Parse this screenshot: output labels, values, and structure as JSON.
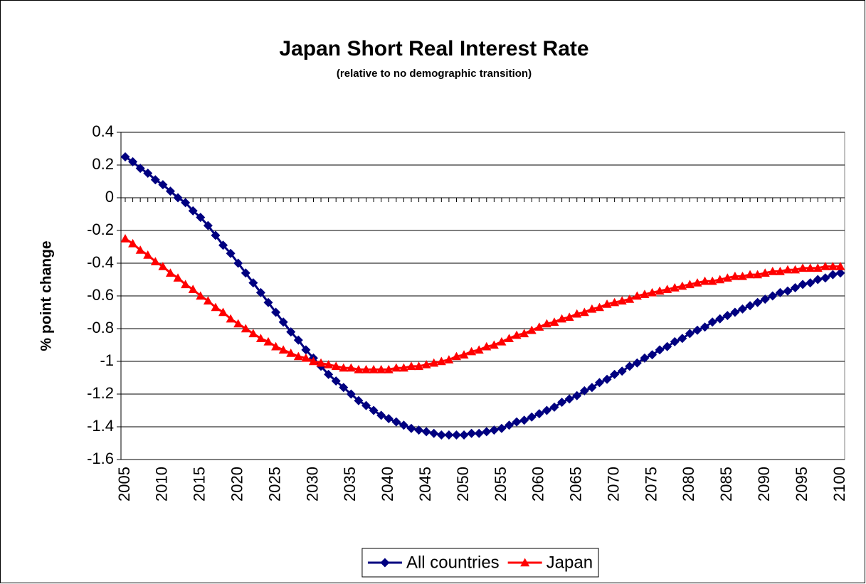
{
  "chart_data": {
    "type": "line",
    "title": "Japan Short Real Interest Rate",
    "subtitle": "(relative to no demographic transition)",
    "y_label": "% point change",
    "x": [
      2005,
      2006,
      2007,
      2008,
      2009,
      2010,
      2011,
      2012,
      2013,
      2014,
      2015,
      2016,
      2017,
      2018,
      2019,
      2020,
      2021,
      2022,
      2023,
      2024,
      2025,
      2026,
      2027,
      2028,
      2029,
      2030,
      2031,
      2032,
      2033,
      2034,
      2035,
      2036,
      2037,
      2038,
      2039,
      2040,
      2041,
      2042,
      2043,
      2044,
      2045,
      2046,
      2047,
      2048,
      2049,
      2050,
      2051,
      2052,
      2053,
      2054,
      2055,
      2056,
      2057,
      2058,
      2059,
      2060,
      2061,
      2062,
      2063,
      2064,
      2065,
      2066,
      2067,
      2068,
      2069,
      2070,
      2071,
      2072,
      2073,
      2074,
      2075,
      2076,
      2077,
      2078,
      2079,
      2080,
      2081,
      2082,
      2083,
      2084,
      2085,
      2086,
      2087,
      2088,
      2089,
      2090,
      2091,
      2092,
      2093,
      2094,
      2095,
      2096,
      2097,
      2098,
      2099,
      2100
    ],
    "series": [
      {
        "name": "All countries",
        "color": "#000080",
        "marker": "diamond",
        "values": [
          0.25,
          0.22,
          0.18,
          0.15,
          0.11,
          0.08,
          0.04,
          0.0,
          -0.03,
          -0.08,
          -0.12,
          -0.17,
          -0.23,
          -0.29,
          -0.34,
          -0.4,
          -0.46,
          -0.52,
          -0.58,
          -0.64,
          -0.7,
          -0.76,
          -0.82,
          -0.87,
          -0.93,
          -0.98,
          -1.03,
          -1.08,
          -1.12,
          -1.16,
          -1.2,
          -1.24,
          -1.27,
          -1.3,
          -1.33,
          -1.35,
          -1.37,
          -1.39,
          -1.41,
          -1.42,
          -1.43,
          -1.44,
          -1.45,
          -1.45,
          -1.45,
          -1.45,
          -1.44,
          -1.44,
          -1.43,
          -1.42,
          -1.41,
          -1.39,
          -1.37,
          -1.36,
          -1.34,
          -1.32,
          -1.3,
          -1.28,
          -1.25,
          -1.23,
          -1.21,
          -1.18,
          -1.16,
          -1.13,
          -1.11,
          -1.08,
          -1.06,
          -1.03,
          -1.01,
          -0.98,
          -0.96,
          -0.93,
          -0.91,
          -0.88,
          -0.86,
          -0.83,
          -0.81,
          -0.79,
          -0.76,
          -0.74,
          -0.72,
          -0.7,
          -0.68,
          -0.66,
          -0.64,
          -0.62,
          -0.6,
          -0.58,
          -0.57,
          -0.55,
          -0.53,
          -0.52,
          -0.5,
          -0.49,
          -0.47,
          -0.46
        ]
      },
      {
        "name": "Japan",
        "color": "#ff0000",
        "marker": "triangle",
        "values": [
          -0.25,
          -0.28,
          -0.32,
          -0.35,
          -0.39,
          -0.42,
          -0.46,
          -0.49,
          -0.53,
          -0.56,
          -0.6,
          -0.63,
          -0.67,
          -0.7,
          -0.74,
          -0.77,
          -0.8,
          -0.83,
          -0.86,
          -0.88,
          -0.91,
          -0.93,
          -0.95,
          -0.97,
          -0.98,
          -1.0,
          -1.01,
          -1.02,
          -1.03,
          -1.04,
          -1.04,
          -1.05,
          -1.05,
          -1.05,
          -1.05,
          -1.05,
          -1.04,
          -1.04,
          -1.03,
          -1.03,
          -1.02,
          -1.01,
          -1.0,
          -0.99,
          -0.97,
          -0.96,
          -0.94,
          -0.93,
          -0.91,
          -0.9,
          -0.88,
          -0.86,
          -0.84,
          -0.83,
          -0.81,
          -0.79,
          -0.77,
          -0.76,
          -0.74,
          -0.73,
          -0.71,
          -0.7,
          -0.68,
          -0.67,
          -0.65,
          -0.64,
          -0.63,
          -0.62,
          -0.6,
          -0.59,
          -0.58,
          -0.57,
          -0.56,
          -0.55,
          -0.54,
          -0.53,
          -0.52,
          -0.51,
          -0.51,
          -0.5,
          -0.49,
          -0.48,
          -0.48,
          -0.47,
          -0.47,
          -0.46,
          -0.45,
          -0.45,
          -0.44,
          -0.44,
          -0.43,
          -0.43,
          -0.43,
          -0.42,
          -0.42,
          -0.42
        ]
      }
    ],
    "xlim": [
      2005,
      2100
    ],
    "xticks": [
      2005,
      2010,
      2015,
      2020,
      2025,
      2030,
      2035,
      2040,
      2045,
      2050,
      2055,
      2060,
      2065,
      2070,
      2075,
      2080,
      2085,
      2090,
      2095,
      2100
    ],
    "ylim": [
      -1.6,
      0.4
    ],
    "yticks": [
      0.4,
      0.2,
      0,
      -0.2,
      -0.4,
      -0.6,
      -0.8,
      -1,
      -1.2,
      -1.4,
      -1.6
    ],
    "grid": true,
    "legend": "bottom"
  }
}
